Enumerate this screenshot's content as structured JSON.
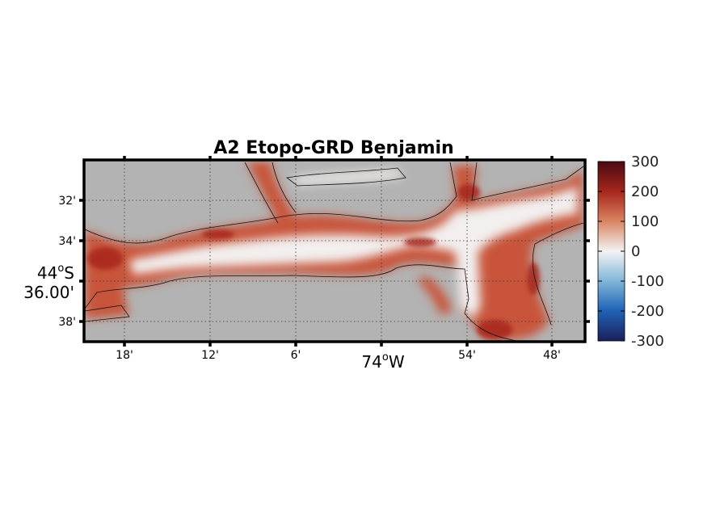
{
  "figure": {
    "title": "A2 Etopo-GRD Benjamin"
  },
  "chart_data": {
    "type": "heatmap",
    "title": "A2 Etopo-GRD Benjamin",
    "x_tick_labels": [
      "18'",
      "12'",
      "6'",
      "74°W",
      "54'",
      "48'"
    ],
    "y_tick_labels": [
      "32'",
      "34'",
      "36.00'",
      "38'"
    ],
    "x_axis_degree_label": {
      "deg": "74",
      "suffix": "W"
    },
    "y_axis_degree_label": {
      "deg": "44",
      "suffix": "S",
      "minutes": "36.00'"
    },
    "x_ticks_minutes": [
      18,
      12,
      6,
      0,
      54,
      48
    ],
    "y_ticks_minutes": [
      32,
      34,
      36,
      38
    ],
    "colorbar": {
      "range": [
        -300,
        300
      ],
      "ticks": [
        300,
        200,
        100,
        0,
        -100,
        -200,
        -300
      ],
      "tick_labels": [
        "300",
        "200",
        "100",
        "0",
        "-100",
        "-200",
        "-300"
      ],
      "colors": {
        "low": "#1a1f5c",
        "mid_low": "#2a7fc0",
        "zero": "#f3f3f3",
        "mid_high": "#c9502a",
        "high": "#4a0a12"
      }
    },
    "land_color": "#b3b3b3",
    "grid": true
  }
}
